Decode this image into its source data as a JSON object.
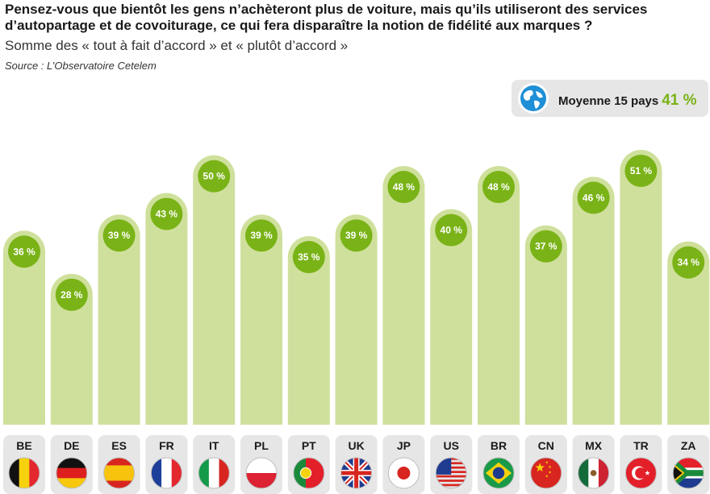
{
  "header": {
    "title": "Pensez-vous que bientôt les gens n’achèteront plus de voiture, mais qu’ils utiliseront des services d’autopartage et de covoiturage, ce qui fera disparaître la notion de fidélité aux marques ?",
    "subtitle": "Somme des « tout à fait d’accord » et « plutôt d’accord »",
    "source": "Source : L’Observatoire Cetelem"
  },
  "average": {
    "label": "Moyenne 15 pays",
    "value_label": "41 %",
    "value": 41,
    "icon": "globe-icon"
  },
  "colors": {
    "bar": "#cfe09c",
    "circle": "#7ab317",
    "accent": "#7ab317",
    "country_box": "#e6e6e6"
  },
  "chart_data": {
    "type": "bar",
    "categories": [
      "BE",
      "DE",
      "ES",
      "FR",
      "IT",
      "PL",
      "PT",
      "UK",
      "JP",
      "US",
      "BR",
      "CN",
      "MX",
      "TR",
      "ZA"
    ],
    "values": [
      36,
      28,
      39,
      43,
      50,
      39,
      35,
      39,
      48,
      40,
      48,
      37,
      46,
      51,
      34
    ],
    "data_labels": [
      "36 %",
      "28 %",
      "39 %",
      "43 %",
      "50 %",
      "39 %",
      "35 %",
      "39 %",
      "48 %",
      "40 %",
      "48 %",
      "37 %",
      "46 %",
      "51 %",
      "34 %"
    ],
    "flags": [
      "flag-be-icon",
      "flag-de-icon",
      "flag-es-icon",
      "flag-fr-icon",
      "flag-it-icon",
      "flag-pl-icon",
      "flag-pt-icon",
      "flag-uk-icon",
      "flag-jp-icon",
      "flag-us-icon",
      "flag-br-icon",
      "flag-cn-icon",
      "flag-mx-icon",
      "flag-tr-icon",
      "flag-za-icon"
    ],
    "unit": "%",
    "grid": false,
    "legend": "none"
  }
}
